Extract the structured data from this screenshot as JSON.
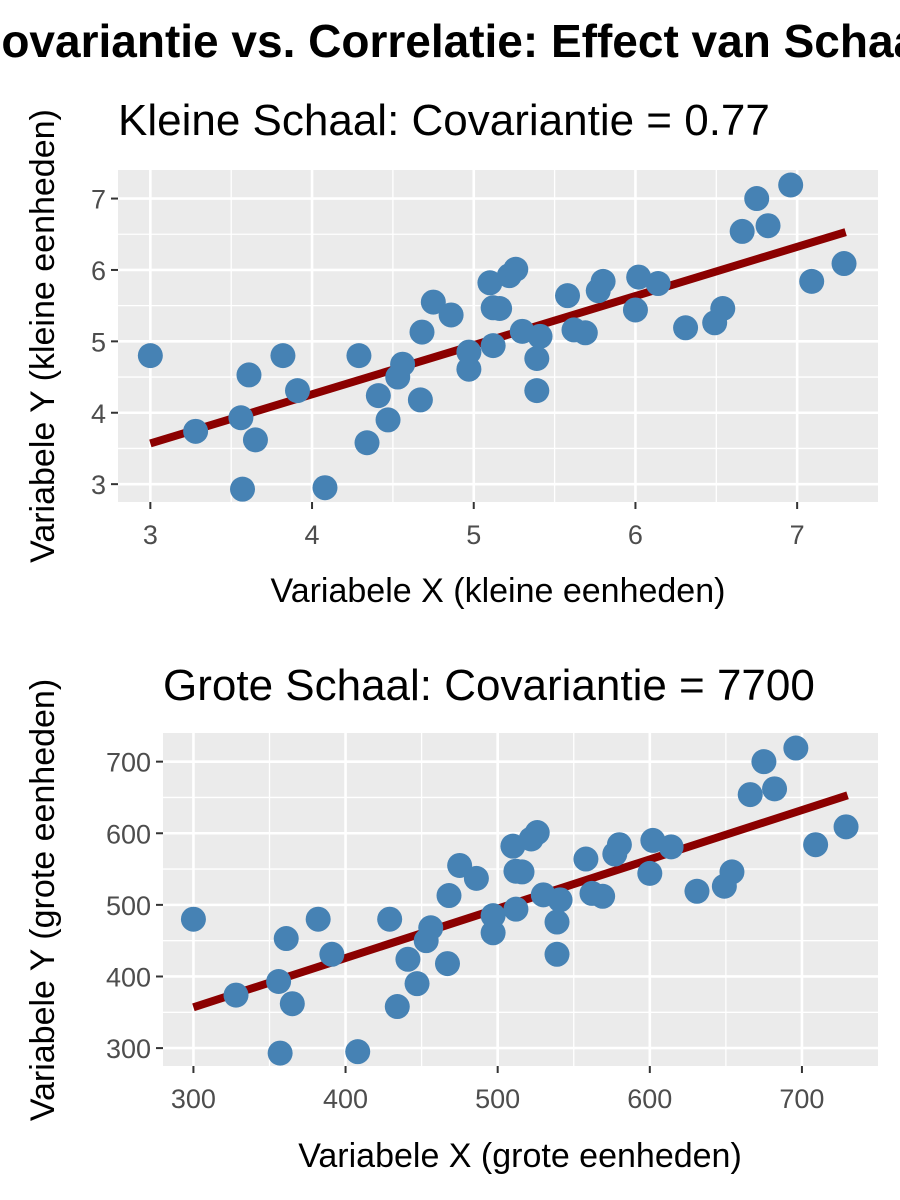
{
  "figure": {
    "title": "Covariantie vs. Correlatie: Effect van Schaal"
  },
  "chart_data": [
    {
      "type": "scatter",
      "title": "Kleine Schaal: Covariantie = 0.77",
      "xlabel": "Variabele X (kleine eenheden)",
      "ylabel": "Variabele Y (kleine eenheden)",
      "xlim": [
        2.8,
        7.5
      ],
      "ylim": [
        2.75,
        7.4
      ],
      "xticks": [
        3,
        4,
        5,
        6,
        7
      ],
      "yticks": [
        3,
        4,
        5,
        6,
        7
      ],
      "grid": true,
      "point_color": "#4682b4",
      "line_color": "#8b0000",
      "fit_line": [
        [
          3.0,
          3.57
        ],
        [
          7.3,
          6.53
        ]
      ],
      "points": [
        [
          3.0,
          4.8
        ],
        [
          3.28,
          3.74
        ],
        [
          3.56,
          3.93
        ],
        [
          3.57,
          2.93
        ],
        [
          3.61,
          4.53
        ],
        [
          3.65,
          3.62
        ],
        [
          3.82,
          4.8
        ],
        [
          3.91,
          4.31
        ],
        [
          4.08,
          2.95
        ],
        [
          4.29,
          4.8
        ],
        [
          4.34,
          3.58
        ],
        [
          4.41,
          4.24
        ],
        [
          4.47,
          3.9
        ],
        [
          4.53,
          4.5
        ],
        [
          4.56,
          4.68
        ],
        [
          4.67,
          4.18
        ],
        [
          4.68,
          5.13
        ],
        [
          4.75,
          5.55
        ],
        [
          4.86,
          5.37
        ],
        [
          4.97,
          4.61
        ],
        [
          4.97,
          4.85
        ],
        [
          5.1,
          5.82
        ],
        [
          5.12,
          4.94
        ],
        [
          5.12,
          5.47
        ],
        [
          5.16,
          5.46
        ],
        [
          5.22,
          5.92
        ],
        [
          5.26,
          6.01
        ],
        [
          5.3,
          5.14
        ],
        [
          5.39,
          4.76
        ],
        [
          5.39,
          4.31
        ],
        [
          5.41,
          5.07
        ],
        [
          5.58,
          5.64
        ],
        [
          5.62,
          5.16
        ],
        [
          5.69,
          5.12
        ],
        [
          5.77,
          5.71
        ],
        [
          5.8,
          5.84
        ],
        [
          6.0,
          5.44
        ],
        [
          6.02,
          5.9
        ],
        [
          6.14,
          5.81
        ],
        [
          6.31,
          5.19
        ],
        [
          6.49,
          5.26
        ],
        [
          6.54,
          5.46
        ],
        [
          6.66,
          6.54
        ],
        [
          6.75,
          7.0
        ],
        [
          6.82,
          6.62
        ],
        [
          6.96,
          7.19
        ],
        [
          7.09,
          5.84
        ],
        [
          7.29,
          6.09
        ]
      ]
    },
    {
      "type": "scatter",
      "title": "Grote Schaal: Covariantie = 7700",
      "xlabel": "Variabele X (grote eenheden)",
      "ylabel": "Variabele Y (grote eenheden)",
      "xlim": [
        280,
        750
      ],
      "ylim": [
        275,
        740
      ],
      "xticks": [
        300,
        400,
        500,
        600,
        700
      ],
      "yticks": [
        300,
        400,
        500,
        600,
        700
      ],
      "grid": true,
      "point_color": "#4682b4",
      "line_color": "#8b0000",
      "fit_line": [
        [
          300,
          357
        ],
        [
          730,
          653
        ]
      ],
      "points": [
        [
          300,
          480
        ],
        [
          328,
          374
        ],
        [
          356,
          393
        ],
        [
          357,
          293
        ],
        [
          361,
          453
        ],
        [
          365,
          362
        ],
        [
          382,
          480
        ],
        [
          391,
          431
        ],
        [
          408,
          295
        ],
        [
          429,
          480
        ],
        [
          434,
          358
        ],
        [
          441,
          424
        ],
        [
          447,
          390
        ],
        [
          453,
          450
        ],
        [
          456,
          468
        ],
        [
          467,
          418
        ],
        [
          468,
          513
        ],
        [
          475,
          555
        ],
        [
          486,
          537
        ],
        [
          497,
          461
        ],
        [
          497,
          485
        ],
        [
          510,
          582
        ],
        [
          512,
          494
        ],
        [
          512,
          547
        ],
        [
          516,
          546
        ],
        [
          522,
          592
        ],
        [
          526,
          601
        ],
        [
          530,
          514
        ],
        [
          539,
          476
        ],
        [
          539,
          431
        ],
        [
          541,
          507
        ],
        [
          558,
          564
        ],
        [
          562,
          516
        ],
        [
          569,
          512
        ],
        [
          577,
          571
        ],
        [
          580,
          584
        ],
        [
          600,
          544
        ],
        [
          602,
          590
        ],
        [
          614,
          581
        ],
        [
          631,
          519
        ],
        [
          649,
          526
        ],
        [
          654,
          546
        ],
        [
          666,
          654
        ],
        [
          675,
          700
        ],
        [
          682,
          662
        ],
        [
          696,
          719
        ],
        [
          709,
          584
        ],
        [
          729,
          609
        ]
      ]
    }
  ]
}
